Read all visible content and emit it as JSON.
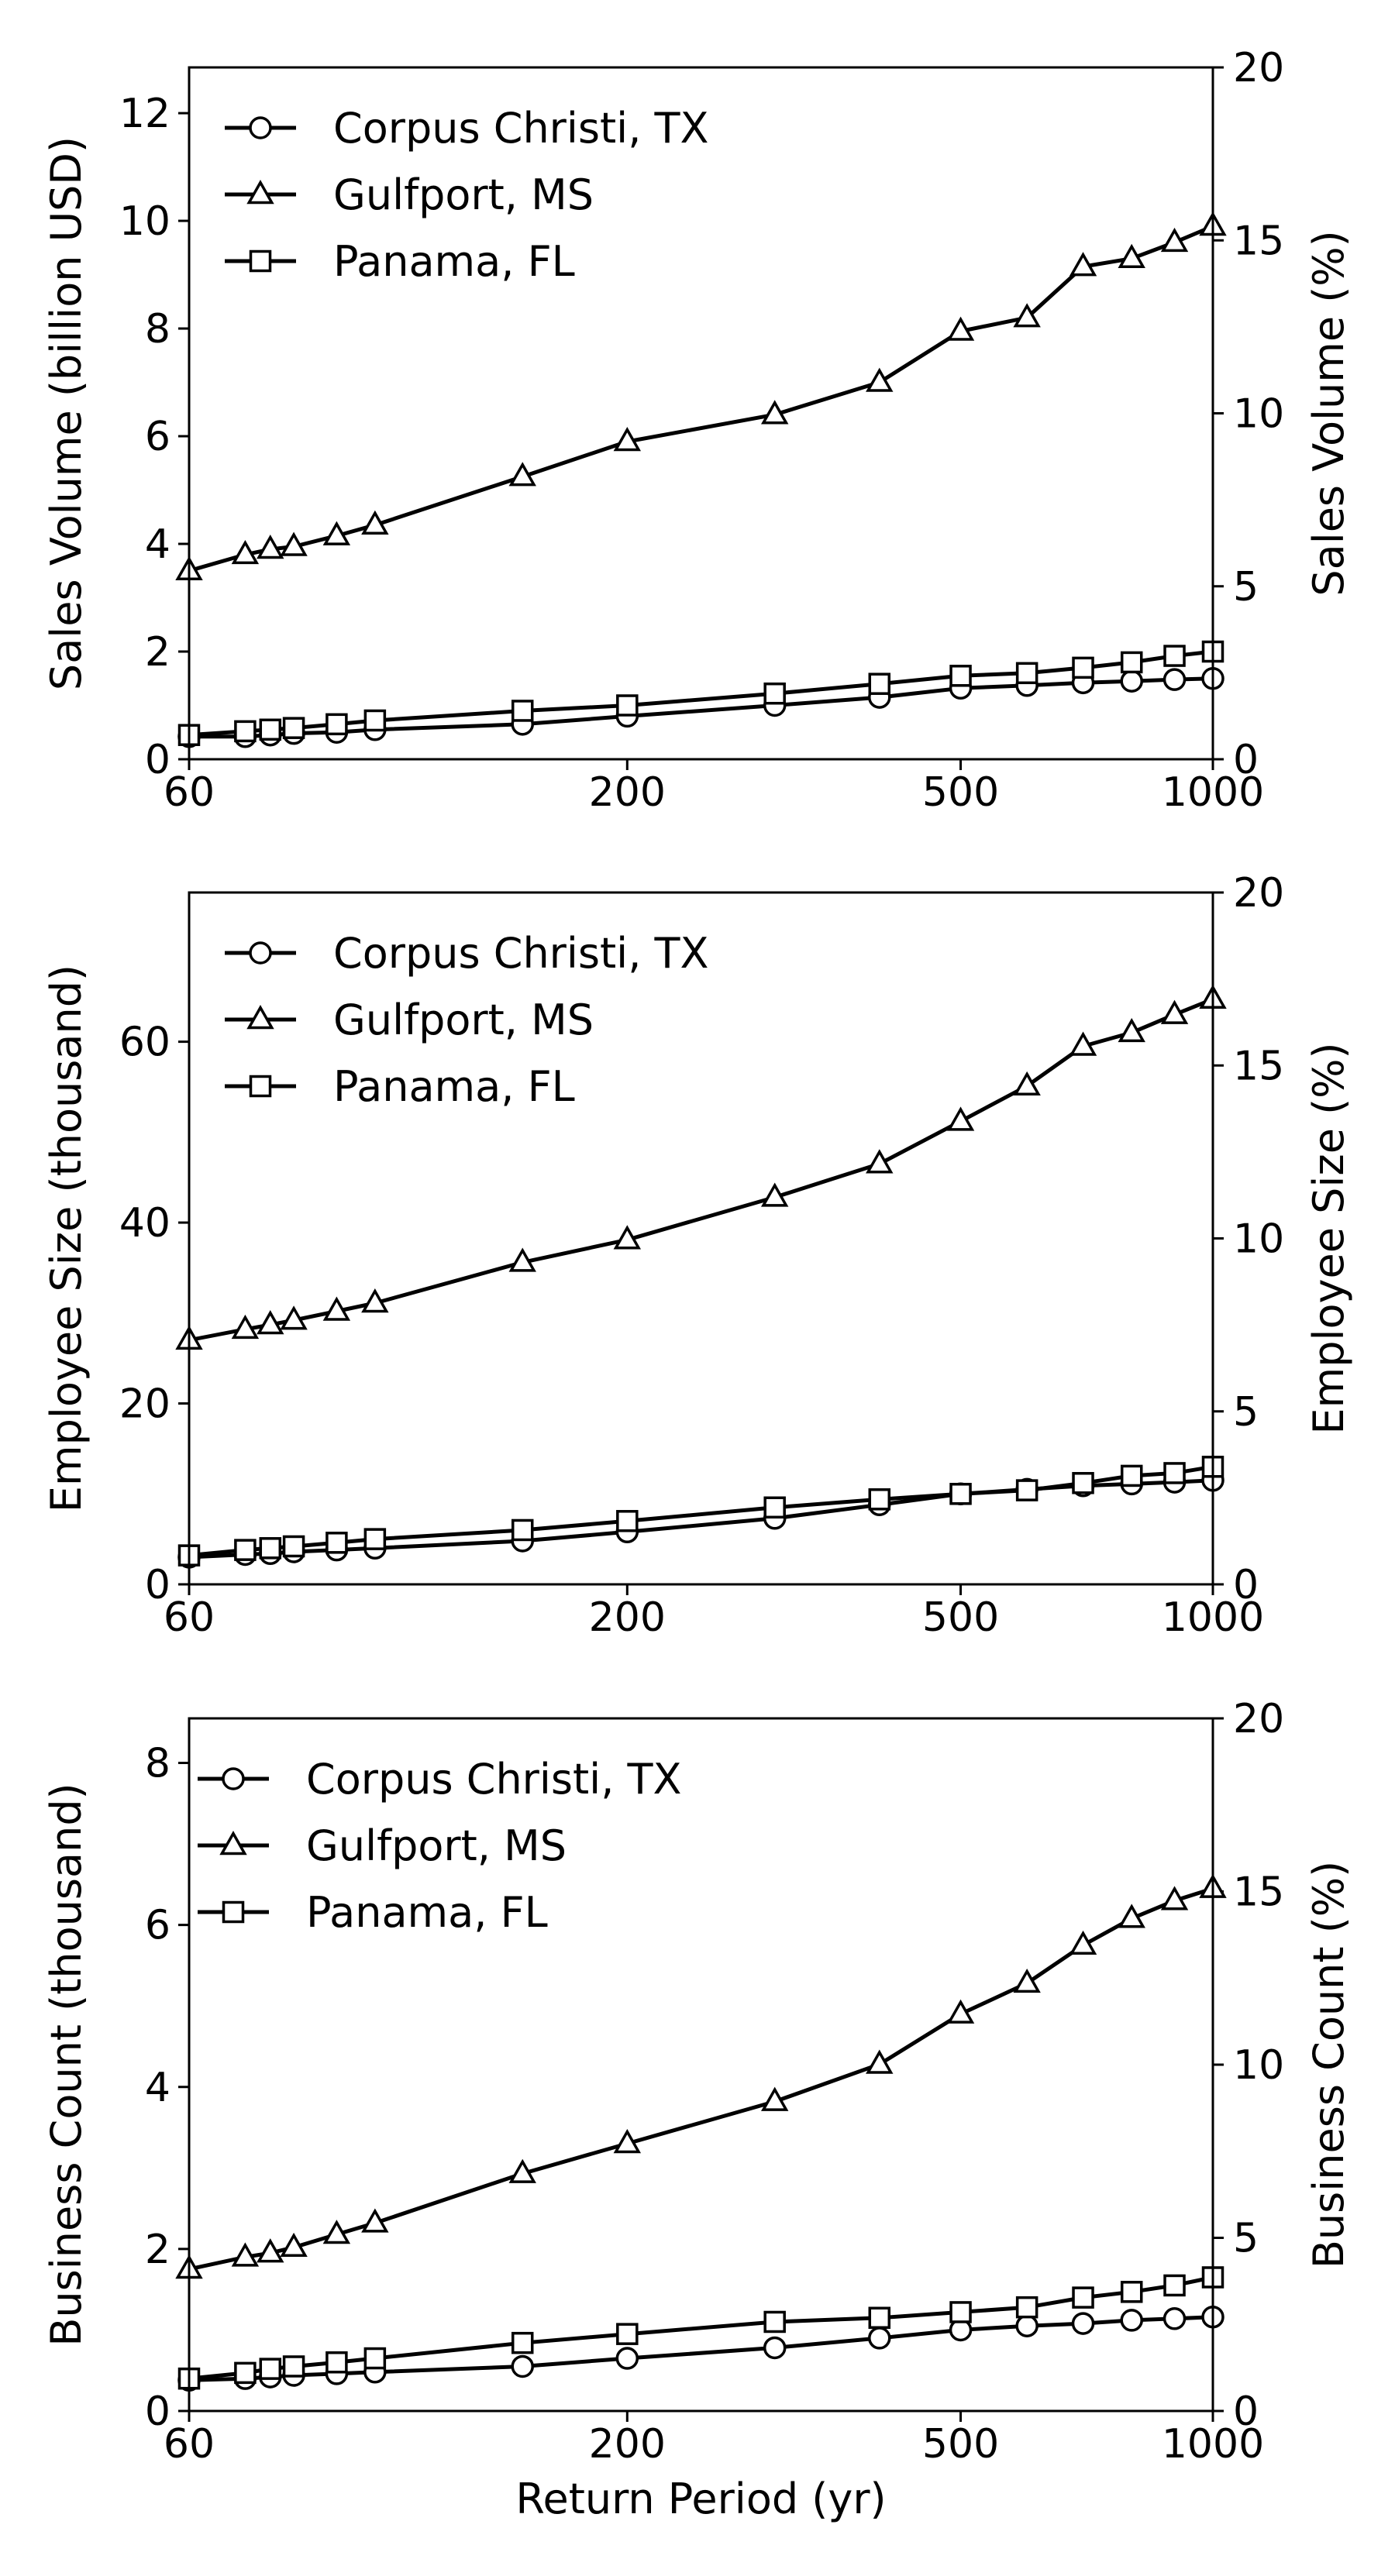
{
  "chart_data": [
    {
      "type": "line",
      "x_scale": "log",
      "xlim": [
        60,
        1000
      ],
      "xticks": [
        60,
        200,
        500,
        1000
      ],
      "xlabel": "",
      "ylabel": "Sales Volume (billion USD)",
      "ylim": [
        0,
        12.85
      ],
      "yticks": [
        0,
        2,
        4,
        6,
        8,
        10,
        12
      ],
      "y2label": "Sales Volume (%)",
      "y2lim": [
        0,
        20
      ],
      "y2ticks": [
        0,
        5,
        10,
        15,
        20
      ],
      "legend": "upper-left",
      "x": [
        60,
        70,
        75,
        80,
        90,
        100,
        150,
        200,
        300,
        400,
        500,
        600,
        700,
        800,
        900,
        1000
      ],
      "series": [
        {
          "name": "Corpus Christi, TX",
          "marker": "circle",
          "values": [
            0.42,
            0.42,
            0.45,
            0.48,
            0.5,
            0.55,
            0.65,
            0.8,
            1.0,
            1.15,
            1.32,
            1.37,
            1.42,
            1.45,
            1.48,
            1.5
          ]
        },
        {
          "name": "Gulfport, MS",
          "marker": "triangle",
          "values": [
            3.5,
            3.8,
            3.9,
            3.95,
            4.15,
            4.35,
            5.25,
            5.9,
            6.4,
            7.0,
            7.95,
            8.2,
            9.15,
            9.3,
            9.6,
            9.9
          ]
        },
        {
          "name": "Panama, FL",
          "marker": "square",
          "values": [
            0.45,
            0.52,
            0.55,
            0.58,
            0.65,
            0.72,
            0.9,
            1.0,
            1.22,
            1.4,
            1.55,
            1.6,
            1.7,
            1.8,
            1.92,
            2.0
          ]
        }
      ]
    },
    {
      "type": "line",
      "x_scale": "log",
      "xlim": [
        60,
        1000
      ],
      "xticks": [
        60,
        200,
        500,
        1000
      ],
      "xlabel": "",
      "ylabel": "Employee Size (thousand)",
      "ylim": [
        0,
        76.5
      ],
      "yticks": [
        0,
        20,
        40,
        60
      ],
      "y2label": "Employee Size (%)",
      "y2lim": [
        0,
        20
      ],
      "y2ticks": [
        0,
        5,
        10,
        15,
        20
      ],
      "legend": "upper-left",
      "x": [
        60,
        70,
        75,
        80,
        90,
        100,
        150,
        200,
        300,
        400,
        500,
        600,
        700,
        800,
        900,
        1000
      ],
      "series": [
        {
          "name": "Corpus Christi, TX",
          "marker": "circle",
          "values": [
            3.0,
            3.3,
            3.4,
            3.6,
            3.8,
            4.0,
            4.8,
            5.8,
            7.3,
            8.8,
            10.0,
            10.5,
            10.9,
            11.1,
            11.3,
            11.5
          ]
        },
        {
          "name": "Gulfport, MS",
          "marker": "triangle",
          "values": [
            27.0,
            28.2,
            28.7,
            29.2,
            30.2,
            31.1,
            35.6,
            38.1,
            42.8,
            46.5,
            51.2,
            55.1,
            59.5,
            61.0,
            63.0,
            64.7
          ]
        },
        {
          "name": "Panama, FL",
          "marker": "square",
          "values": [
            3.2,
            3.8,
            4.0,
            4.2,
            4.6,
            5.0,
            6.0,
            7.0,
            8.5,
            9.4,
            10.0,
            10.4,
            11.2,
            12.0,
            12.3,
            13.0
          ]
        }
      ]
    },
    {
      "type": "line",
      "x_scale": "log",
      "xlim": [
        60,
        1000
      ],
      "xticks": [
        60,
        200,
        500,
        1000
      ],
      "xlabel": "Return Period (yr)",
      "ylabel": "Business Count (thousand)",
      "ylim": [
        0,
        8.55
      ],
      "yticks": [
        0,
        2,
        4,
        6,
        8
      ],
      "y2label": "Business Count (%)",
      "y2lim": [
        0,
        20
      ],
      "y2ticks": [
        0,
        5,
        10,
        15,
        20
      ],
      "legend": "upper-left",
      "x": [
        60,
        70,
        75,
        80,
        90,
        100,
        150,
        200,
        300,
        400,
        500,
        600,
        700,
        800,
        900,
        1000
      ],
      "series": [
        {
          "name": "Corpus Christi, TX",
          "marker": "circle",
          "values": [
            0.38,
            0.4,
            0.42,
            0.44,
            0.46,
            0.48,
            0.55,
            0.65,
            0.78,
            0.9,
            1.0,
            1.05,
            1.08,
            1.12,
            1.14,
            1.16
          ]
        },
        {
          "name": "Gulfport, MS",
          "marker": "triangle",
          "values": [
            1.75,
            1.9,
            1.95,
            2.02,
            2.18,
            2.32,
            2.93,
            3.3,
            3.82,
            4.28,
            4.9,
            5.28,
            5.75,
            6.08,
            6.3,
            6.45
          ]
        },
        {
          "name": "Panama, FL",
          "marker": "square",
          "values": [
            0.4,
            0.47,
            0.52,
            0.55,
            0.6,
            0.65,
            0.84,
            0.95,
            1.1,
            1.15,
            1.22,
            1.28,
            1.4,
            1.47,
            1.55,
            1.65
          ]
        }
      ]
    }
  ]
}
